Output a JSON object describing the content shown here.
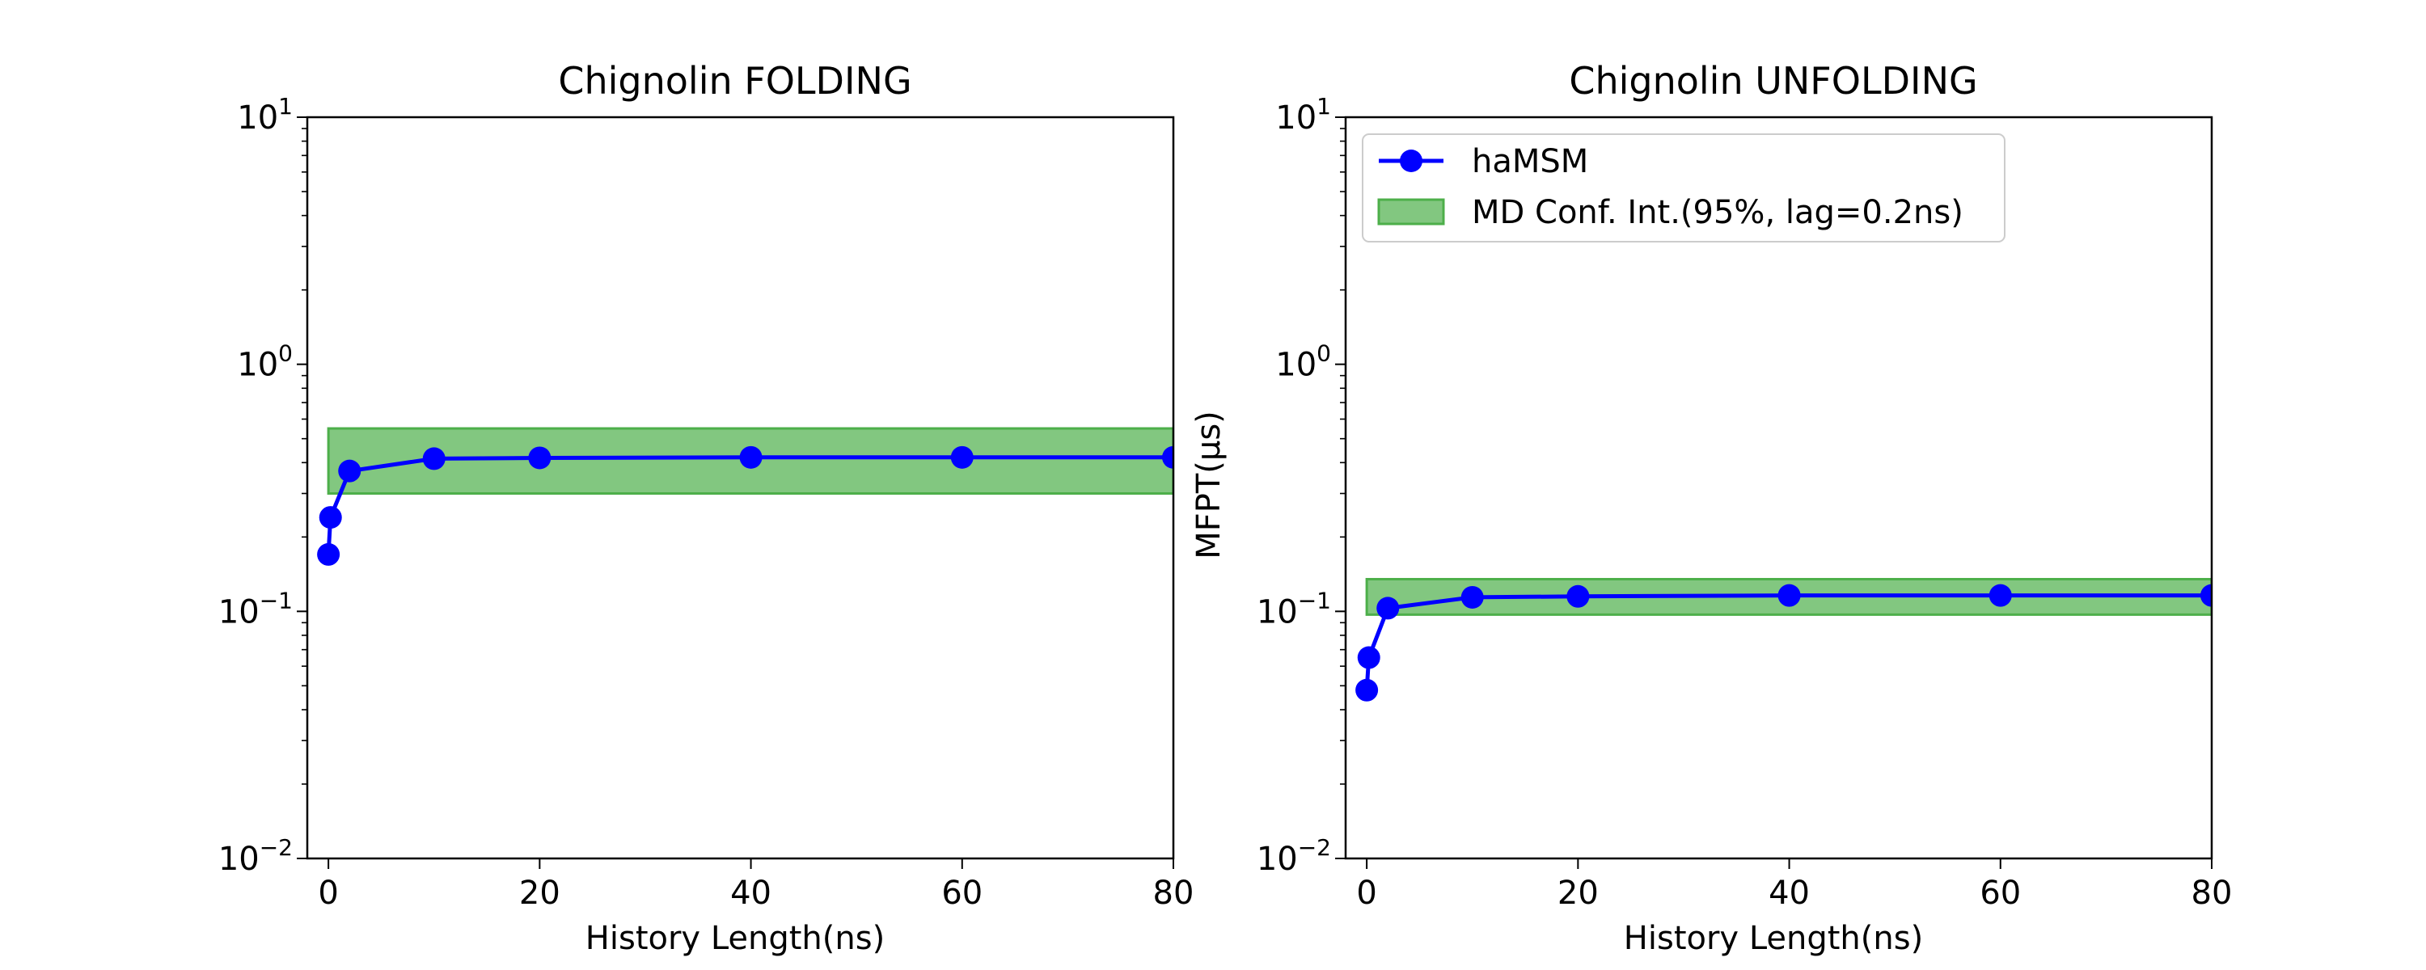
{
  "chart_data": [
    {
      "type": "line",
      "title": "Chignolin FOLDING",
      "xlabel": "History Length(ns)",
      "ylabel": "",
      "yscale": "log",
      "xlim": [
        -2,
        80
      ],
      "ylim": [
        0.01,
        10
      ],
      "x_ticks": [
        0,
        20,
        40,
        60,
        80
      ],
      "x_tick_labels": [
        "0",
        "20",
        "40",
        "60",
        "80"
      ],
      "y_ticks": [
        0.01,
        0.1,
        1,
        10
      ],
      "y_tick_labels": [
        {
          "base": "10",
          "exp": "−2"
        },
        {
          "base": "10",
          "exp": "−1"
        },
        {
          "base": "10",
          "exp": "0"
        },
        {
          "base": "10",
          "exp": "1"
        }
      ],
      "grid": false,
      "series": [
        {
          "name": "haMSM",
          "color": "#0000ff",
          "x": [
            0,
            0.2,
            2,
            10,
            20,
            40,
            60,
            80
          ],
          "y": [
            0.17,
            0.24,
            0.37,
            0.415,
            0.418,
            0.42,
            0.42,
            0.42
          ]
        }
      ],
      "band": {
        "name": "MD Conf. Int.(95%, lag=0.2ns)",
        "color": "#4daf4a",
        "x_range": [
          0,
          80
        ],
        "y_low": 0.3,
        "y_high": 0.55
      }
    },
    {
      "type": "line",
      "title": "Chignolin UNFOLDING",
      "xlabel": "History Length(ns)",
      "ylabel": "MFPT(μs)",
      "yscale": "log",
      "xlim": [
        -2,
        80
      ],
      "ylim": [
        0.01,
        10
      ],
      "x_ticks": [
        0,
        20,
        40,
        60,
        80
      ],
      "x_tick_labels": [
        "0",
        "20",
        "40",
        "60",
        "80"
      ],
      "y_ticks": [
        0.01,
        0.1,
        1,
        10
      ],
      "y_tick_labels": [
        {
          "base": "10",
          "exp": "−2"
        },
        {
          "base": "10",
          "exp": "−1"
        },
        {
          "base": "10",
          "exp": "0"
        },
        {
          "base": "10",
          "exp": "1"
        }
      ],
      "grid": false,
      "legend_position": "top-left",
      "series": [
        {
          "name": "haMSM",
          "color": "#0000ff",
          "x": [
            0,
            0.2,
            2,
            10,
            20,
            40,
            60,
            80
          ],
          "y": [
            0.048,
            0.065,
            0.103,
            0.114,
            0.115,
            0.116,
            0.116,
            0.116
          ]
        }
      ],
      "band": {
        "name": "MD Conf. Int.(95%, lag=0.2ns)",
        "color": "#4daf4a",
        "x_range": [
          0,
          80
        ],
        "y_low": 0.097,
        "y_high": 0.135
      }
    }
  ]
}
